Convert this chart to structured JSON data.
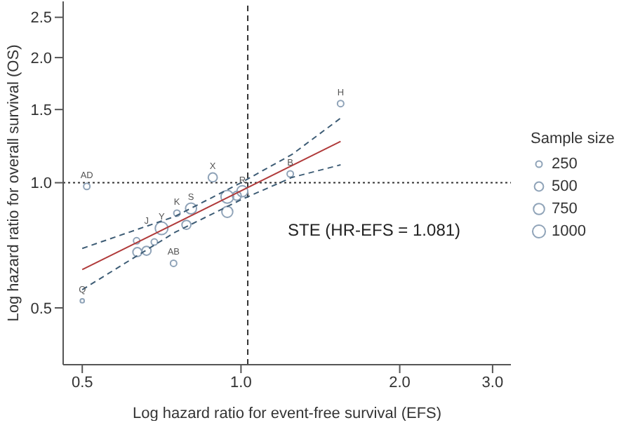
{
  "chart_data": {
    "type": "bubble",
    "xlabel": "Log hazard ratio for event-free survival (EFS)",
    "ylabel": "Log hazard ratio for overall survival (OS)",
    "log": "xy",
    "xlim": [
      0.46,
      3.25
    ],
    "xticks": [
      {
        "value": 0.5,
        "label": "0.5"
      },
      {
        "value": 1,
        "label": "1.0"
      },
      {
        "value": 2,
        "label": "2.0"
      },
      {
        "value": 3,
        "label": "3.0"
      }
    ],
    "ylim": [
      0.365,
      2.73
    ],
    "yticks": [
      {
        "value": 0.5,
        "label": "0.5"
      },
      {
        "value": 1,
        "label": "1.0"
      },
      {
        "value": 1.5,
        "label": "1.5"
      },
      {
        "value": 2,
        "label": "2.0"
      },
      {
        "value": 2.5,
        "label": "2.5"
      }
    ],
    "legend_title": "Sample size",
    "size_legend": [
      250,
      500,
      750,
      1000
    ],
    "marker": "circle",
    "series": [
      {
        "color": "#8fa3b8",
        "x": [
          0.51,
          0.5,
          0.745,
          0.884,
          1.545,
          1.24,
          1.006,
          0.982,
          0.942,
          0.942,
          0.756,
          0.804,
          0.788,
          0.707,
          0.685,
          0.634,
          0.636,
          0.662
        ],
        "values": [
          0.98,
          0.52,
          0.64,
          1.03,
          1.55,
          1.05,
          0.954,
          0.93,
          0.925,
          0.851,
          0.845,
          0.867,
          0.792,
          0.777,
          0.72,
          0.725,
          0.681,
          0.686
        ],
        "sizes": [
          250,
          100,
          250,
          500,
          250,
          250,
          750,
          500,
          1000,
          750,
          250,
          750,
          500,
          1000,
          250,
          250,
          500,
          500
        ]
      },
      {
        "type": "line",
        "color": "#b03a3a",
        "x": [
          0.5,
          1.545
        ],
        "values": [
          0.618,
          1.257
        ],
        "line_style": "solid",
        "marker": "none"
      },
      {
        "type": "line",
        "color": "#3d5c75",
        "x": [
          0.5,
          0.75,
          1,
          1.25,
          1.545
        ],
        "values": [
          0.695,
          0.83,
          1.0,
          1.17,
          1.43
        ],
        "line_style": "dashed",
        "marker": "none"
      },
      {
        "type": "line",
        "color": "#3d5c75",
        "x": [
          0.5,
          0.75,
          1,
          1.25,
          1.545
        ],
        "values": [
          0.553,
          0.76,
          0.91,
          1.03,
          1.104
        ],
        "line_style": "dashed",
        "marker": "none"
      }
    ],
    "ref_lines": [
      {
        "axis": "y",
        "value": 1,
        "line_style": "dotted",
        "color": "#333333"
      },
      {
        "axis": "x",
        "value": 1.03,
        "line_style": "dashed",
        "color": "#333333"
      }
    ],
    "annotations": [
      "STE (HR-EFS = 1.081)",
      {
        "text": "AD",
        "x": 0.51,
        "y": 0.98
      },
      {
        "text": "Q",
        "x": 0.5,
        "y": 0.52
      },
      {
        "text": "AB",
        "x": 0.745,
        "y": 0.64
      },
      {
        "text": "X",
        "x": 0.884,
        "y": 1.03
      },
      {
        "text": "H",
        "x": 1.545,
        "y": 1.55
      },
      {
        "text": "B",
        "x": 1.24,
        "y": 1.05
      },
      {
        "text": "R",
        "x": 1.006,
        "y": 0.954
      },
      {
        "text": "K",
        "x": 0.756,
        "y": 0.845
      },
      {
        "text": "S",
        "x": 0.804,
        "y": 0.867
      },
      {
        "text": "Y",
        "x": 0.707,
        "y": 0.777
      },
      {
        "text": "J",
        "x": 0.662,
        "y": 0.76
      }
    ]
  }
}
